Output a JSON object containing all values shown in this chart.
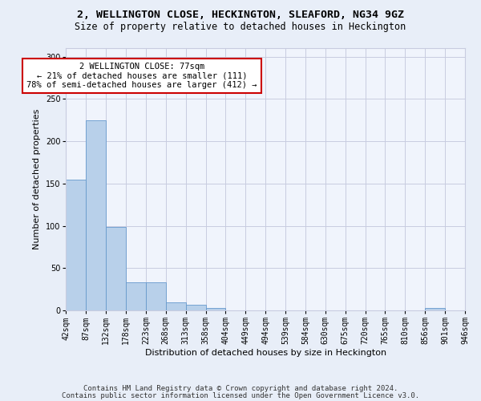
{
  "title1": "2, WELLINGTON CLOSE, HECKINGTON, SLEAFORD, NG34 9GZ",
  "title2": "Size of property relative to detached houses in Heckington",
  "xlabel": "Distribution of detached houses by size in Heckington",
  "ylabel": "Number of detached properties",
  "bar_values": [
    155,
    225,
    99,
    33,
    33,
    10,
    7,
    3,
    0,
    0,
    0,
    0,
    0,
    0,
    0,
    0,
    0,
    0,
    3,
    0
  ],
  "x_labels": [
    "42sqm",
    "87sqm",
    "132sqm",
    "178sqm",
    "223sqm",
    "268sqm",
    "313sqm",
    "358sqm",
    "404sqm",
    "449sqm",
    "494sqm",
    "539sqm",
    "584sqm",
    "630sqm",
    "675sqm",
    "720sqm",
    "765sqm",
    "810sqm",
    "856sqm",
    "901sqm",
    "946sqm"
  ],
  "bar_color": "#b8d0ea",
  "bar_edge_color": "#6699cc",
  "annotation_text": "2 WELLINGTON CLOSE: 77sqm\n← 21% of detached houses are smaller (111)\n78% of semi-detached houses are larger (412) →",
  "annotation_box_color": "#ffffff",
  "annotation_border_color": "#cc0000",
  "ylim": [
    0,
    310
  ],
  "yticks": [
    0,
    50,
    100,
    150,
    200,
    250,
    300
  ],
  "footer1": "Contains HM Land Registry data © Crown copyright and database right 2024.",
  "footer2": "Contains public sector information licensed under the Open Government Licence v3.0.",
  "bg_color": "#e8eef8",
  "plot_bg_color": "#f0f4fc",
  "grid_color": "#c8cce0",
  "title1_fontsize": 9.5,
  "title2_fontsize": 8.5,
  "xlabel_fontsize": 8,
  "ylabel_fontsize": 8,
  "tick_fontsize": 7,
  "annotation_fontsize": 7.5,
  "footer_fontsize": 6.5
}
